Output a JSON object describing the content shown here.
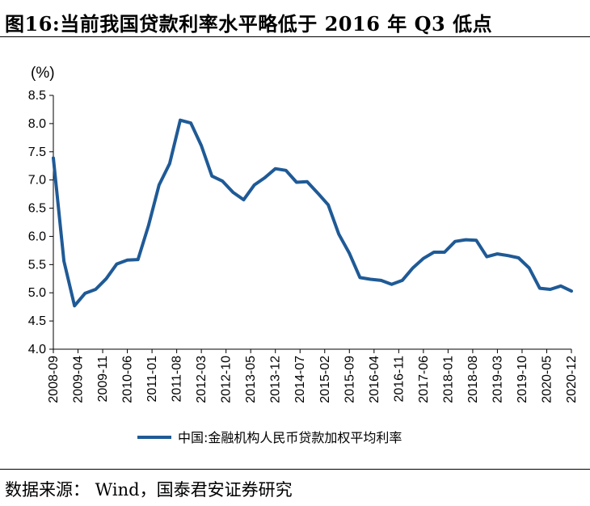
{
  "title": "图16:当前我国贷款利率水平略低于 2016 年 Q3 低点",
  "source": "数据来源： Wind，国泰君安证券研究",
  "chart_data": {
    "type": "line",
    "unit_label": "(%)",
    "ylim": [
      4.0,
      8.5
    ],
    "yticks": [
      "4.0",
      "4.5",
      "5.0",
      "5.5",
      "6.0",
      "6.5",
      "7.0",
      "7.5",
      "8.0",
      "8.5"
    ],
    "xtick_labels": [
      "2008-09",
      "2009-04",
      "2009-11",
      "2010-06",
      "2011-01",
      "2011-08",
      "2012-03",
      "2012-10",
      "2013-05",
      "2013-12",
      "2014-07",
      "2015-02",
      "2015-09",
      "2016-04",
      "2016-11",
      "2017-06",
      "2018-01",
      "2018-08",
      "2019-03",
      "2019-10",
      "2020-05",
      "2020-12"
    ],
    "series": [
      {
        "name": "中国:金融机构人民币贷款加权平均利率",
        "color": "#1f5a96",
        "x": [
          "2008-09",
          "2008-12",
          "2009-03",
          "2009-06",
          "2009-09",
          "2009-12",
          "2010-03",
          "2010-06",
          "2010-09",
          "2010-12",
          "2011-03",
          "2011-06",
          "2011-09",
          "2011-12",
          "2012-03",
          "2012-06",
          "2012-09",
          "2012-12",
          "2013-03",
          "2013-06",
          "2013-09",
          "2013-12",
          "2014-03",
          "2014-06",
          "2014-09",
          "2014-12",
          "2015-03",
          "2015-06",
          "2015-09",
          "2015-12",
          "2016-03",
          "2016-06",
          "2016-09",
          "2016-12",
          "2017-03",
          "2017-06",
          "2017-09",
          "2017-12",
          "2018-03",
          "2018-06",
          "2018-09",
          "2018-12",
          "2019-03",
          "2019-06",
          "2019-09",
          "2019-12",
          "2020-03",
          "2020-06",
          "2020-09",
          "2020-12"
        ],
        "y": [
          7.39,
          5.56,
          4.77,
          4.99,
          5.06,
          5.25,
          5.51,
          5.58,
          5.59,
          6.19,
          6.91,
          7.29,
          8.06,
          8.01,
          7.61,
          7.07,
          6.98,
          6.78,
          6.65,
          6.91,
          7.04,
          7.2,
          7.17,
          6.96,
          6.97,
          6.77,
          6.56,
          6.04,
          5.7,
          5.27,
          5.24,
          5.22,
          5.15,
          5.22,
          5.44,
          5.61,
          5.72,
          5.72,
          5.91,
          5.94,
          5.93,
          5.64,
          5.69,
          5.66,
          5.62,
          5.44,
          5.08,
          5.06,
          5.12,
          5.03
        ]
      }
    ],
    "legend_position": "bottom"
  }
}
